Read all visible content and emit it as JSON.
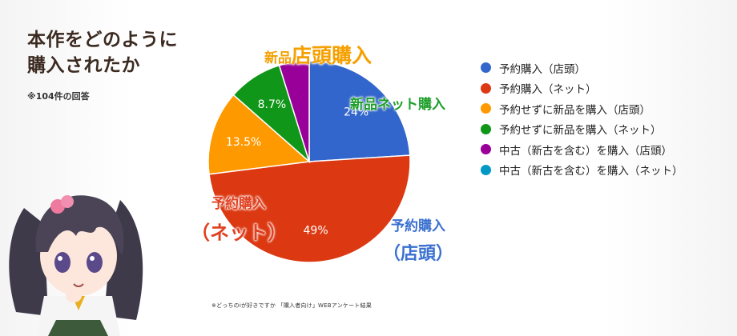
{
  "header": {
    "title_line1": "本作をどのように",
    "title_line2": "購入されたか",
    "note": "※104件の回答"
  },
  "footnote": "※どっちのiが好きですか 「購入者向け」WEBアンケート結果",
  "callouts": {
    "store_new_small": "新品",
    "store_new_big": "店頭購入",
    "net_new": "新品ネット購入",
    "reserve_net_line1": "予約購入",
    "reserve_net_line2": "（ネット）",
    "reserve_store_line1": "予約購入",
    "reserve_store_line2": "（店頭）"
  },
  "chart_data": {
    "type": "pie",
    "start_angle": "top",
    "direction": "clockwise",
    "slices": [
      {
        "label": "予約購入（店頭）",
        "value": 24,
        "display": "24%",
        "color": "#3366cc"
      },
      {
        "label": "予約購入（ネット）",
        "value": 49,
        "display": "49%",
        "color": "#dc3912"
      },
      {
        "label": "予約せずに新品を購入（店頭）",
        "value": 13.5,
        "display": "13.5%",
        "color": "#ff9900"
      },
      {
        "label": "予約せずに新品を購入（ネット）",
        "value": 8.7,
        "display": "8.7%",
        "color": "#109618"
      },
      {
        "label": "中古（新古を含む）を購入（店頭）",
        "value": 4.8,
        "display": "",
        "color": "#990099"
      },
      {
        "label": "中古（新古を含む）を購入（ネット）",
        "value": 0,
        "display": "",
        "color": "#0099c6"
      }
    ],
    "legend_position": "right"
  }
}
